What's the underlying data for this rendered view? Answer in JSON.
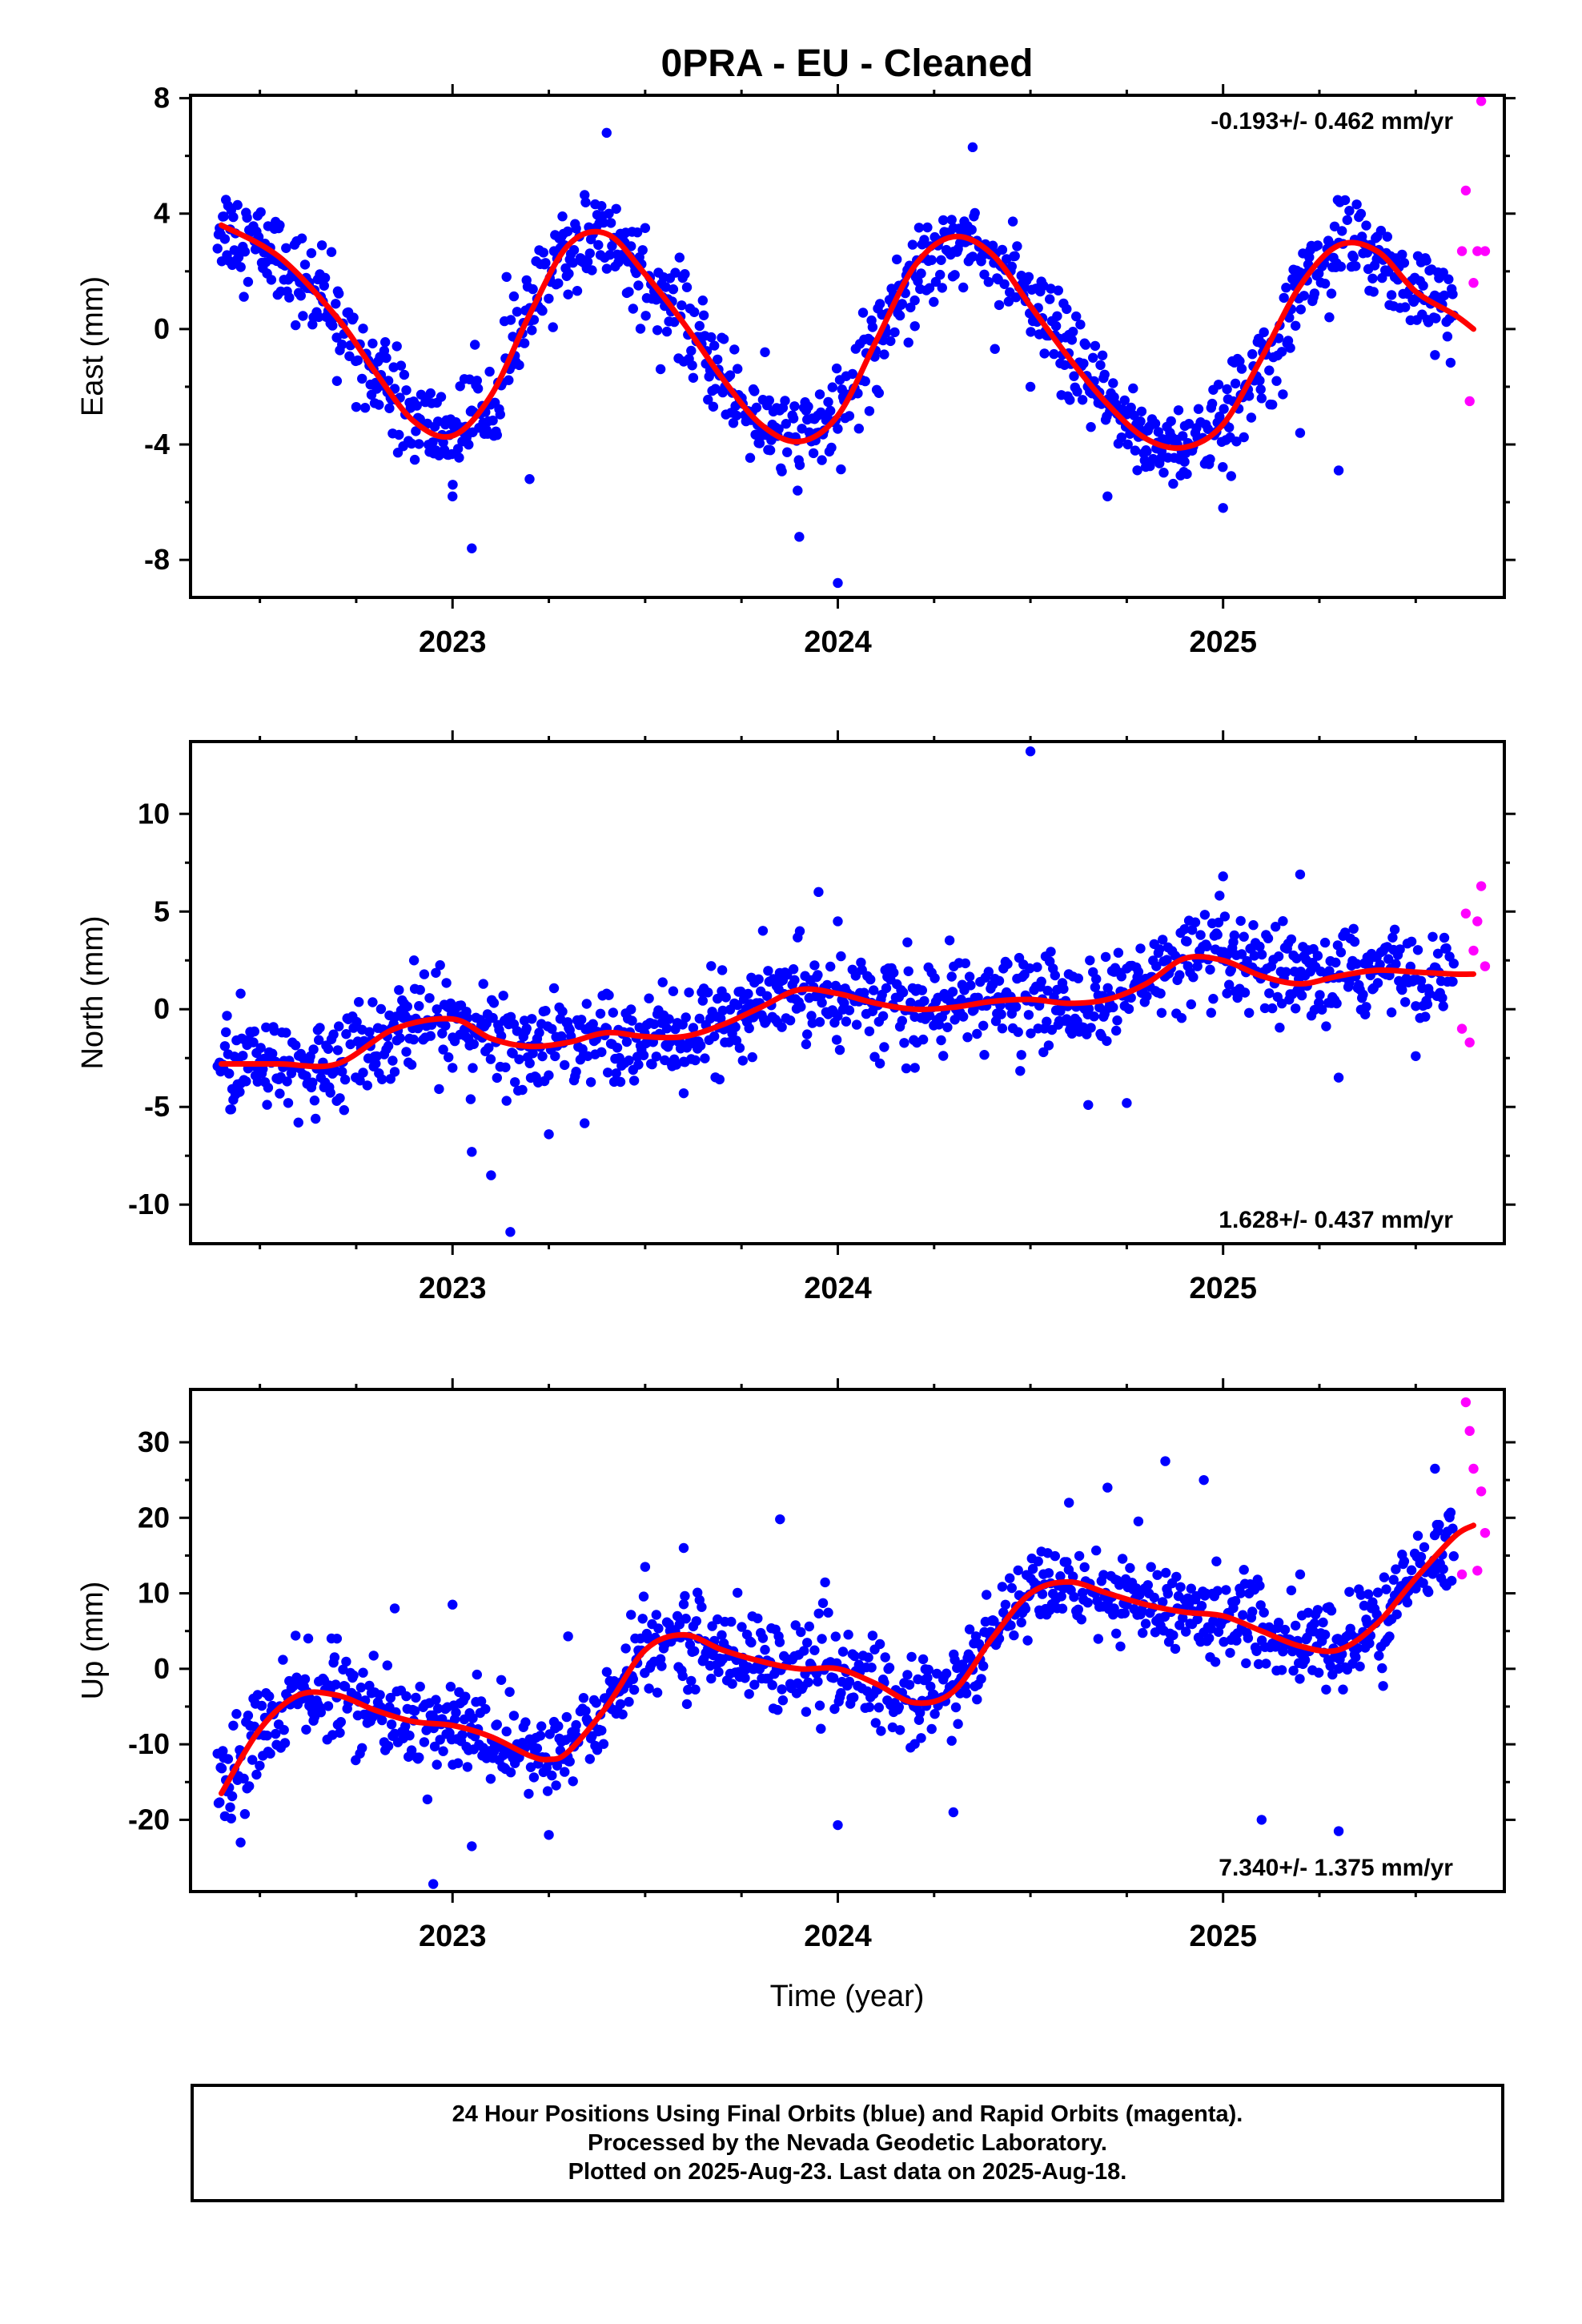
{
  "title": "0PRA  - EU - Cleaned",
  "colors": {
    "final": "#0000ff",
    "rapid": "#ff00ff",
    "fit": "#ff0000",
    "frame": "#000000"
  },
  "x_axis": {
    "label": "Time (year)",
    "ticks": [
      2023,
      2024,
      2025
    ],
    "range": [
      2022.32,
      2025.73
    ]
  },
  "chart_data": [
    {
      "type": "scatter",
      "ylabel": "East (mm)",
      "rate_text": "-0.193+/- 0.462 mm/yr",
      "rate_position": "top-right",
      "ylim": [
        -9.3,
        8.1
      ],
      "yticks": [
        -8,
        -4,
        0,
        4,
        8
      ],
      "fit_curve": {
        "x": [
          2022.4,
          2022.55,
          2022.7,
          2022.8,
          2022.9,
          2023.0,
          2023.1,
          2023.2,
          2023.3,
          2023.4,
          2023.5,
          2023.6,
          2023.7,
          2023.8,
          2023.9,
          2024.0,
          2024.1,
          2024.2,
          2024.3,
          2024.4,
          2024.5,
          2024.6,
          2024.7,
          2024.8,
          2024.9,
          2025.0,
          2025.1,
          2025.2,
          2025.3,
          2025.4,
          2025.5,
          2025.6,
          2025.65
        ],
        "y": [
          3.6,
          2.5,
          0.4,
          -1.5,
          -3.2,
          -3.7,
          -2.3,
          0.5,
          2.9,
          3.3,
          1.9,
          0.2,
          -1.7,
          -3.3,
          -3.9,
          -3.0,
          -0.4,
          2.2,
          3.2,
          2.6,
          0.8,
          -1.0,
          -2.6,
          -3.8,
          -4.1,
          -3.3,
          -1.0,
          1.5,
          2.9,
          2.7,
          1.3,
          0.5,
          0.0
        ]
      },
      "final_points": {
        "x": [
          2022.7,
          2022.75,
          2023.0,
          2023.05,
          2023.2,
          2023.3,
          2023.4,
          2023.5,
          2023.8,
          2023.9,
          2024.0,
          2024.2,
          2024.3,
          2024.35,
          2024.5,
          2024.6,
          2024.7,
          2024.8,
          2024.9,
          2025.0,
          2025.1,
          2025.2,
          2025.3,
          2025.4,
          2025.55
        ],
        "y": [
          -1.8,
          -2.7,
          -5.8,
          -7.6,
          -5.2,
          1.2,
          6.8,
          3.5,
          -3.6,
          -7.2,
          -8.8,
          0.1,
          3.5,
          6.3,
          -2.0,
          -0.2,
          -5.8,
          -4.2,
          -4.6,
          -6.2,
          -2.4,
          -3.6,
          -4.9,
          3.2,
          -0.9
        ]
      },
      "rapid_points": {
        "x": [
          2025.62,
          2025.63,
          2025.64,
          2025.65,
          2025.66,
          2025.67,
          2025.68
        ],
        "y": [
          2.7,
          4.8,
          -2.5,
          1.6,
          2.7,
          7.9,
          2.7
        ]
      }
    },
    {
      "type": "scatter",
      "ylabel": "North (mm)",
      "rate_text": "1.628+/- 0.437 mm/yr",
      "rate_position": "bottom-right",
      "ylim": [
        -12.0,
        13.7
      ],
      "yticks": [
        -10,
        -5,
        0,
        5,
        10
      ],
      "fit_curve": {
        "x": [
          2022.4,
          2022.55,
          2022.7,
          2022.85,
          2023.0,
          2023.1,
          2023.2,
          2023.3,
          2023.4,
          2023.5,
          2023.6,
          2023.7,
          2023.8,
          2023.9,
          2024.0,
          2024.1,
          2024.2,
          2024.3,
          2024.4,
          2024.5,
          2024.6,
          2024.7,
          2024.8,
          2024.9,
          2025.0,
          2025.1,
          2025.2,
          2025.3,
          2025.4,
          2025.5,
          2025.6,
          2025.65
        ],
        "y": [
          -2.8,
          -2.8,
          -2.8,
          -1.0,
          -0.5,
          -1.5,
          -1.9,
          -1.7,
          -1.2,
          -1.4,
          -1.4,
          -0.8,
          0.1,
          1.0,
          0.8,
          0.3,
          0.0,
          0.1,
          0.4,
          0.5,
          0.3,
          0.5,
          1.3,
          2.6,
          2.5,
          1.7,
          1.3,
          1.7,
          2.0,
          1.9,
          1.8,
          1.8
        ]
      },
      "final_points": {
        "x": [
          2022.45,
          2022.6,
          2022.9,
          2023.0,
          2023.05,
          2023.1,
          2023.15,
          2023.25,
          2023.4,
          2023.6,
          2023.7,
          2023.95,
          2024.0,
          2024.2,
          2024.5,
          2024.65,
          2024.75,
          2024.9,
          2025.0,
          2025.2,
          2025.3,
          2025.5
        ],
        "y": [
          0.8,
          -5.8,
          2.5,
          -3.0,
          -7.3,
          -8.5,
          -11.4,
          -6.4,
          0.8,
          -4.3,
          2.0,
          6.0,
          4.5,
          -3.0,
          13.2,
          -4.9,
          -4.8,
          4.1,
          6.8,
          6.9,
          -3.5,
          -2.4
        ]
      },
      "rapid_points": {
        "x": [
          2025.62,
          2025.63,
          2025.64,
          2025.65,
          2025.66,
          2025.67,
          2025.68
        ],
        "y": [
          -1.0,
          4.9,
          -1.7,
          3.0,
          4.5,
          6.3,
          2.2
        ]
      }
    },
    {
      "type": "scatter",
      "ylabel": "Up (mm)",
      "rate_text": "7.340+/- 1.375 mm/yr",
      "rate_position": "bottom-right",
      "ylim": [
        -29.5,
        37.0
      ],
      "yticks": [
        -20,
        -10,
        0,
        10,
        20,
        30
      ],
      "fit_curve": {
        "x": [
          2022.4,
          2022.5,
          2022.6,
          2022.7,
          2022.8,
          2022.9,
          2023.0,
          2023.1,
          2023.2,
          2023.25,
          2023.3,
          2023.4,
          2023.5,
          2023.6,
          2023.7,
          2023.8,
          2023.9,
          2024.0,
          2024.1,
          2024.2,
          2024.3,
          2024.4,
          2024.5,
          2024.6,
          2024.7,
          2024.8,
          2024.9,
          2025.0,
          2025.1,
          2025.2,
          2025.3,
          2025.4,
          2025.5,
          2025.6,
          2025.65
        ],
        "y": [
          -16.5,
          -8.0,
          -3.5,
          -3.5,
          -5.5,
          -7.0,
          -7.5,
          -9.0,
          -11.5,
          -12.0,
          -11.0,
          -5.0,
          2.5,
          4.5,
          2.5,
          1.0,
          0.0,
          0.0,
          -2.0,
          -4.5,
          -3.0,
          4.0,
          10.0,
          11.5,
          10.0,
          8.5,
          7.5,
          7.0,
          5.0,
          3.0,
          2.5,
          6.0,
          12.0,
          17.5,
          19.0
        ]
      },
      "final_points": {
        "x": [
          2022.45,
          2022.7,
          2022.85,
          2022.95,
          2023.0,
          2023.05,
          2023.25,
          2023.3,
          2023.5,
          2023.6,
          2023.85,
          2024.0,
          2024.3,
          2024.6,
          2024.7,
          2024.85,
          2024.95,
          2025.1,
          2025.2,
          2025.3,
          2025.55
        ],
        "y": [
          -23.0,
          4.0,
          8.0,
          -28.5,
          8.5,
          -23.5,
          -22.0,
          4.3,
          13.5,
          16.0,
          19.8,
          -20.7,
          -19.0,
          22.0,
          24.0,
          27.5,
          25.0,
          -20.0,
          12.5,
          -21.5,
          26.5
        ]
      },
      "rapid_points": {
        "x": [
          2025.62,
          2025.63,
          2025.64,
          2025.65,
          2025.66,
          2025.67,
          2025.68
        ],
        "y": [
          12.5,
          35.3,
          31.5,
          26.5,
          13.0,
          23.5,
          18.0
        ]
      }
    }
  ],
  "footer": {
    "line1": "24 Hour Positions Using Final Orbits (blue) and Rapid Orbits (magenta).",
    "line2": "Processed by the Nevada Geodetic Laboratory.",
    "line3": "Plotted on 2025-Aug-23. Last data on 2025-Aug-18."
  }
}
